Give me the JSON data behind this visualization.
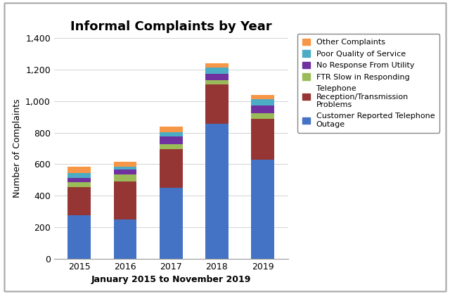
{
  "years": [
    "2015",
    "2016",
    "2017",
    "2018",
    "2019"
  ],
  "series": {
    "Customer Reported Telephone\nOutage": [
      275,
      250,
      450,
      855,
      630
    ],
    "Telephone\nReception/Transmission\nProblems": [
      180,
      240,
      245,
      250,
      260
    ],
    "FTR Slow in Responding": [
      30,
      45,
      30,
      30,
      35
    ],
    "No Response From Utility": [
      30,
      30,
      50,
      40,
      50
    ],
    "Poor Quality of Service": [
      30,
      20,
      30,
      40,
      40
    ],
    "Other Complaints": [
      40,
      30,
      35,
      25,
      25
    ]
  },
  "colors": {
    "Customer Reported Telephone\nOutage": "#4472C4",
    "Telephone\nReception/Transmission\nProblems": "#963634",
    "FTR Slow in Responding": "#9BBB59",
    "No Response From Utility": "#7030A0",
    "Poor Quality of Service": "#4BACC6",
    "Other Complaints": "#F79646"
  },
  "title": "Informal Complaints by Year",
  "xlabel": "January 2015 to November 2019",
  "ylabel": "Number of Complaints",
  "ylim": [
    0,
    1400
  ],
  "yticks": [
    0,
    200,
    400,
    600,
    800,
    1000,
    1200,
    1400
  ],
  "background_color": "#ffffff",
  "outer_border_color": "#aaaaaa",
  "title_fontsize": 13,
  "axis_fontsize": 9,
  "legend_fontsize": 8
}
